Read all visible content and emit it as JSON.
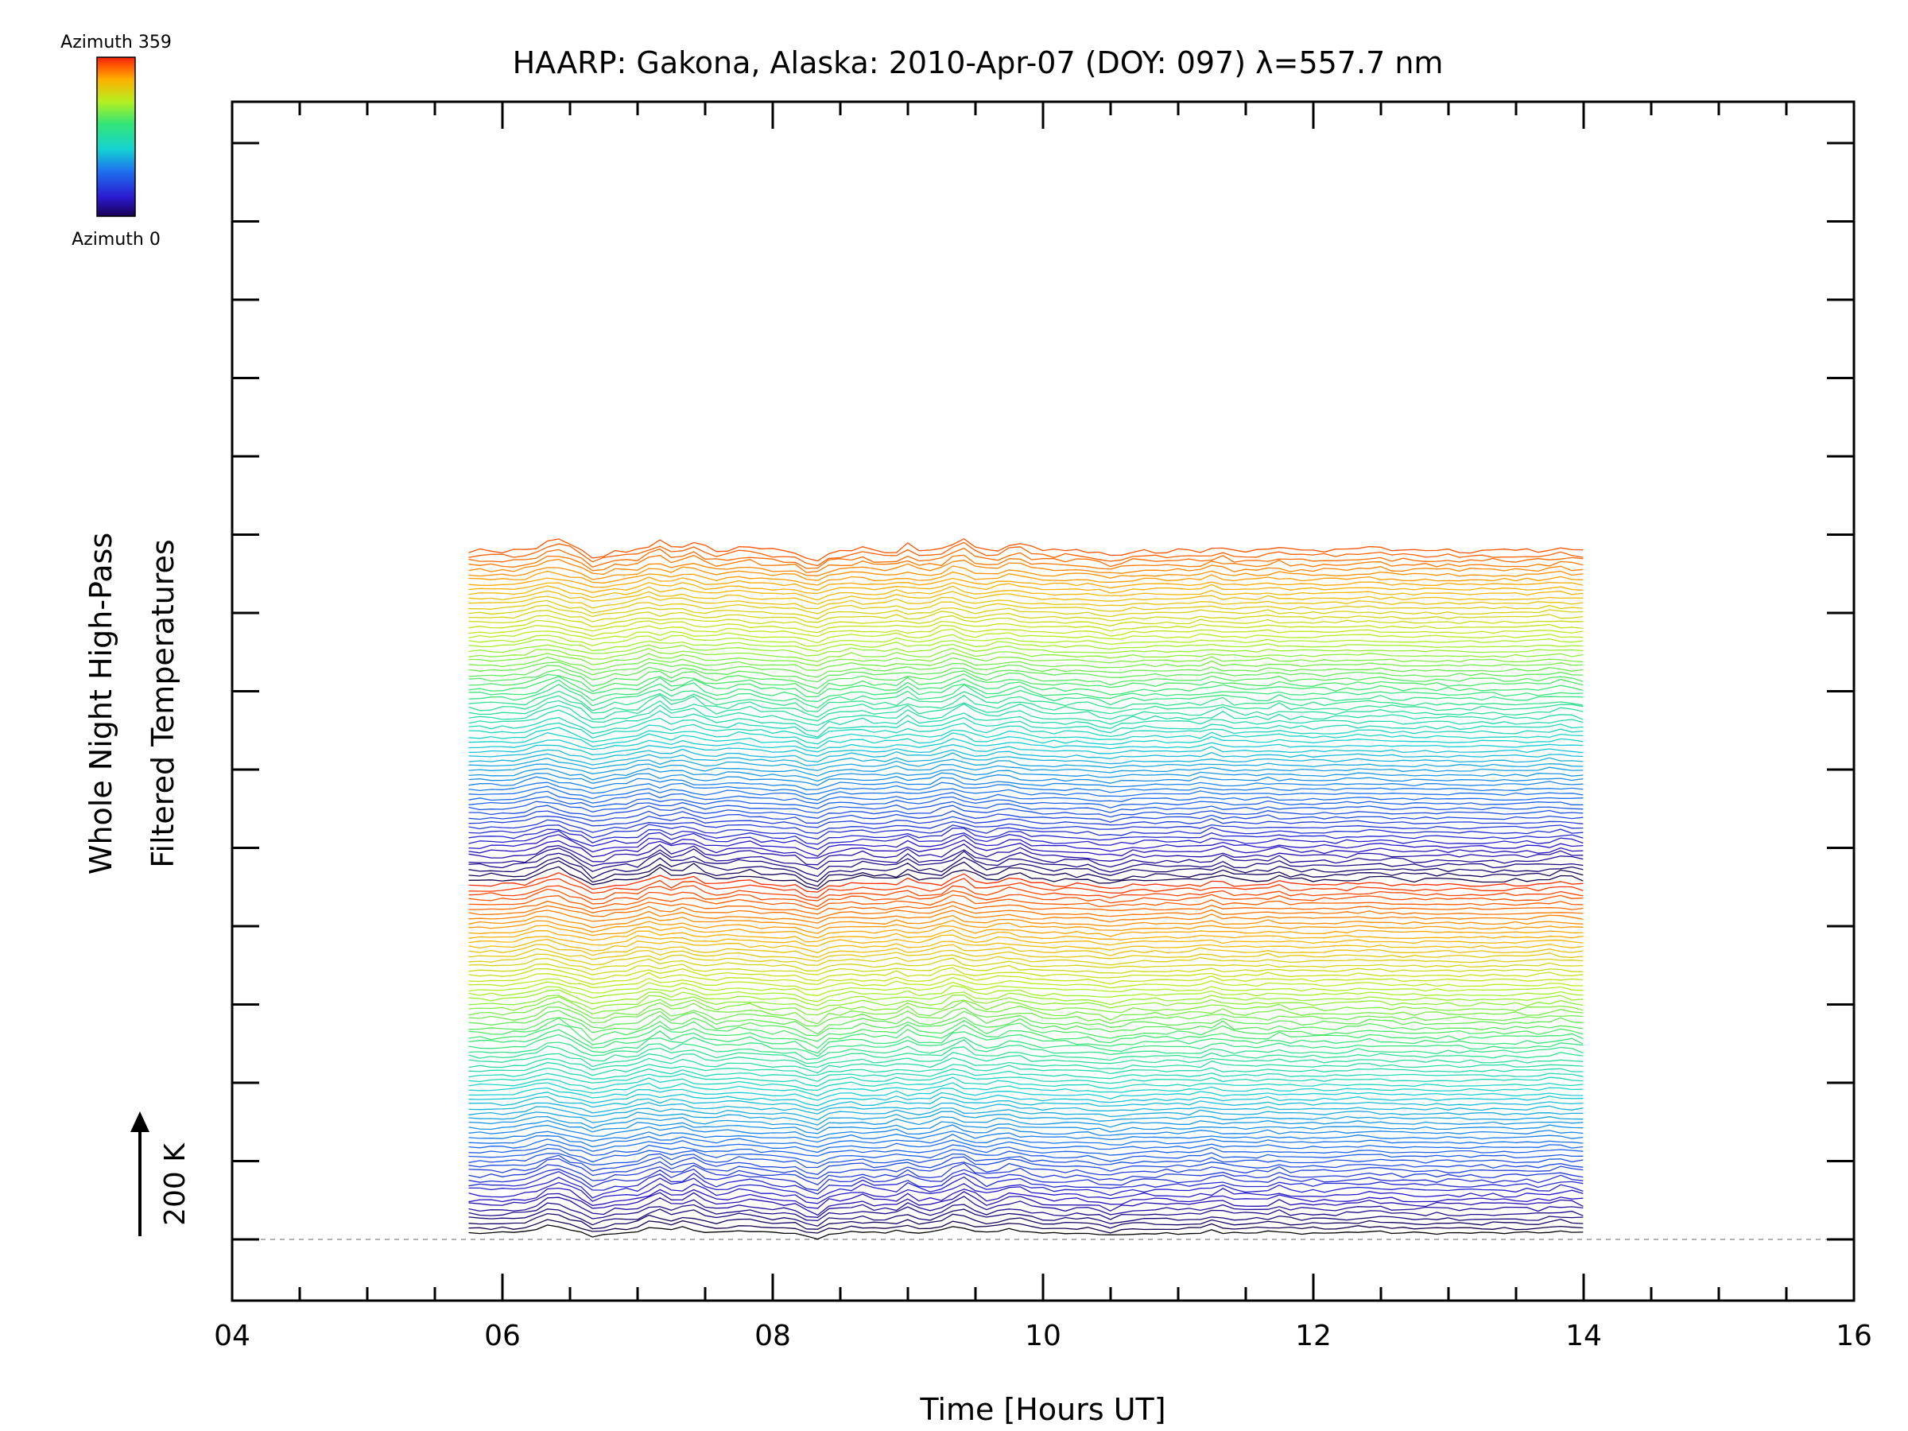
{
  "chart_data": {
    "type": "line",
    "title": "HAARP: Gakona,  Alaska: 2010-Apr-07 (DOY: 097) λ=557.7 nm",
    "xlabel": "Time [Hours UT]",
    "ylabel_line1": "Whole Night High-Pass",
    "ylabel_line2": "Filtered Temperatures",
    "xlim": [
      4,
      16
    ],
    "x_ticks": [
      "04",
      "06",
      "08",
      "10",
      "12",
      "14",
      "16"
    ],
    "data_time_range": [
      5.75,
      14.0
    ],
    "scale_bar_label": "200 K",
    "scale_bar_value_K": 200,
    "num_traces": 144,
    "colorbar": {
      "top_label": "Azimuth 359",
      "bottom_label": "Azimuth 0",
      "range": [
        0,
        359
      ]
    },
    "trace_offset_units": "stacked high-pass filtered temperature traces, one per azimuth, colored by azimuth",
    "baseline_style": "dashed",
    "colors": {
      "baseline": "#999999",
      "axis": "#000000"
    }
  }
}
